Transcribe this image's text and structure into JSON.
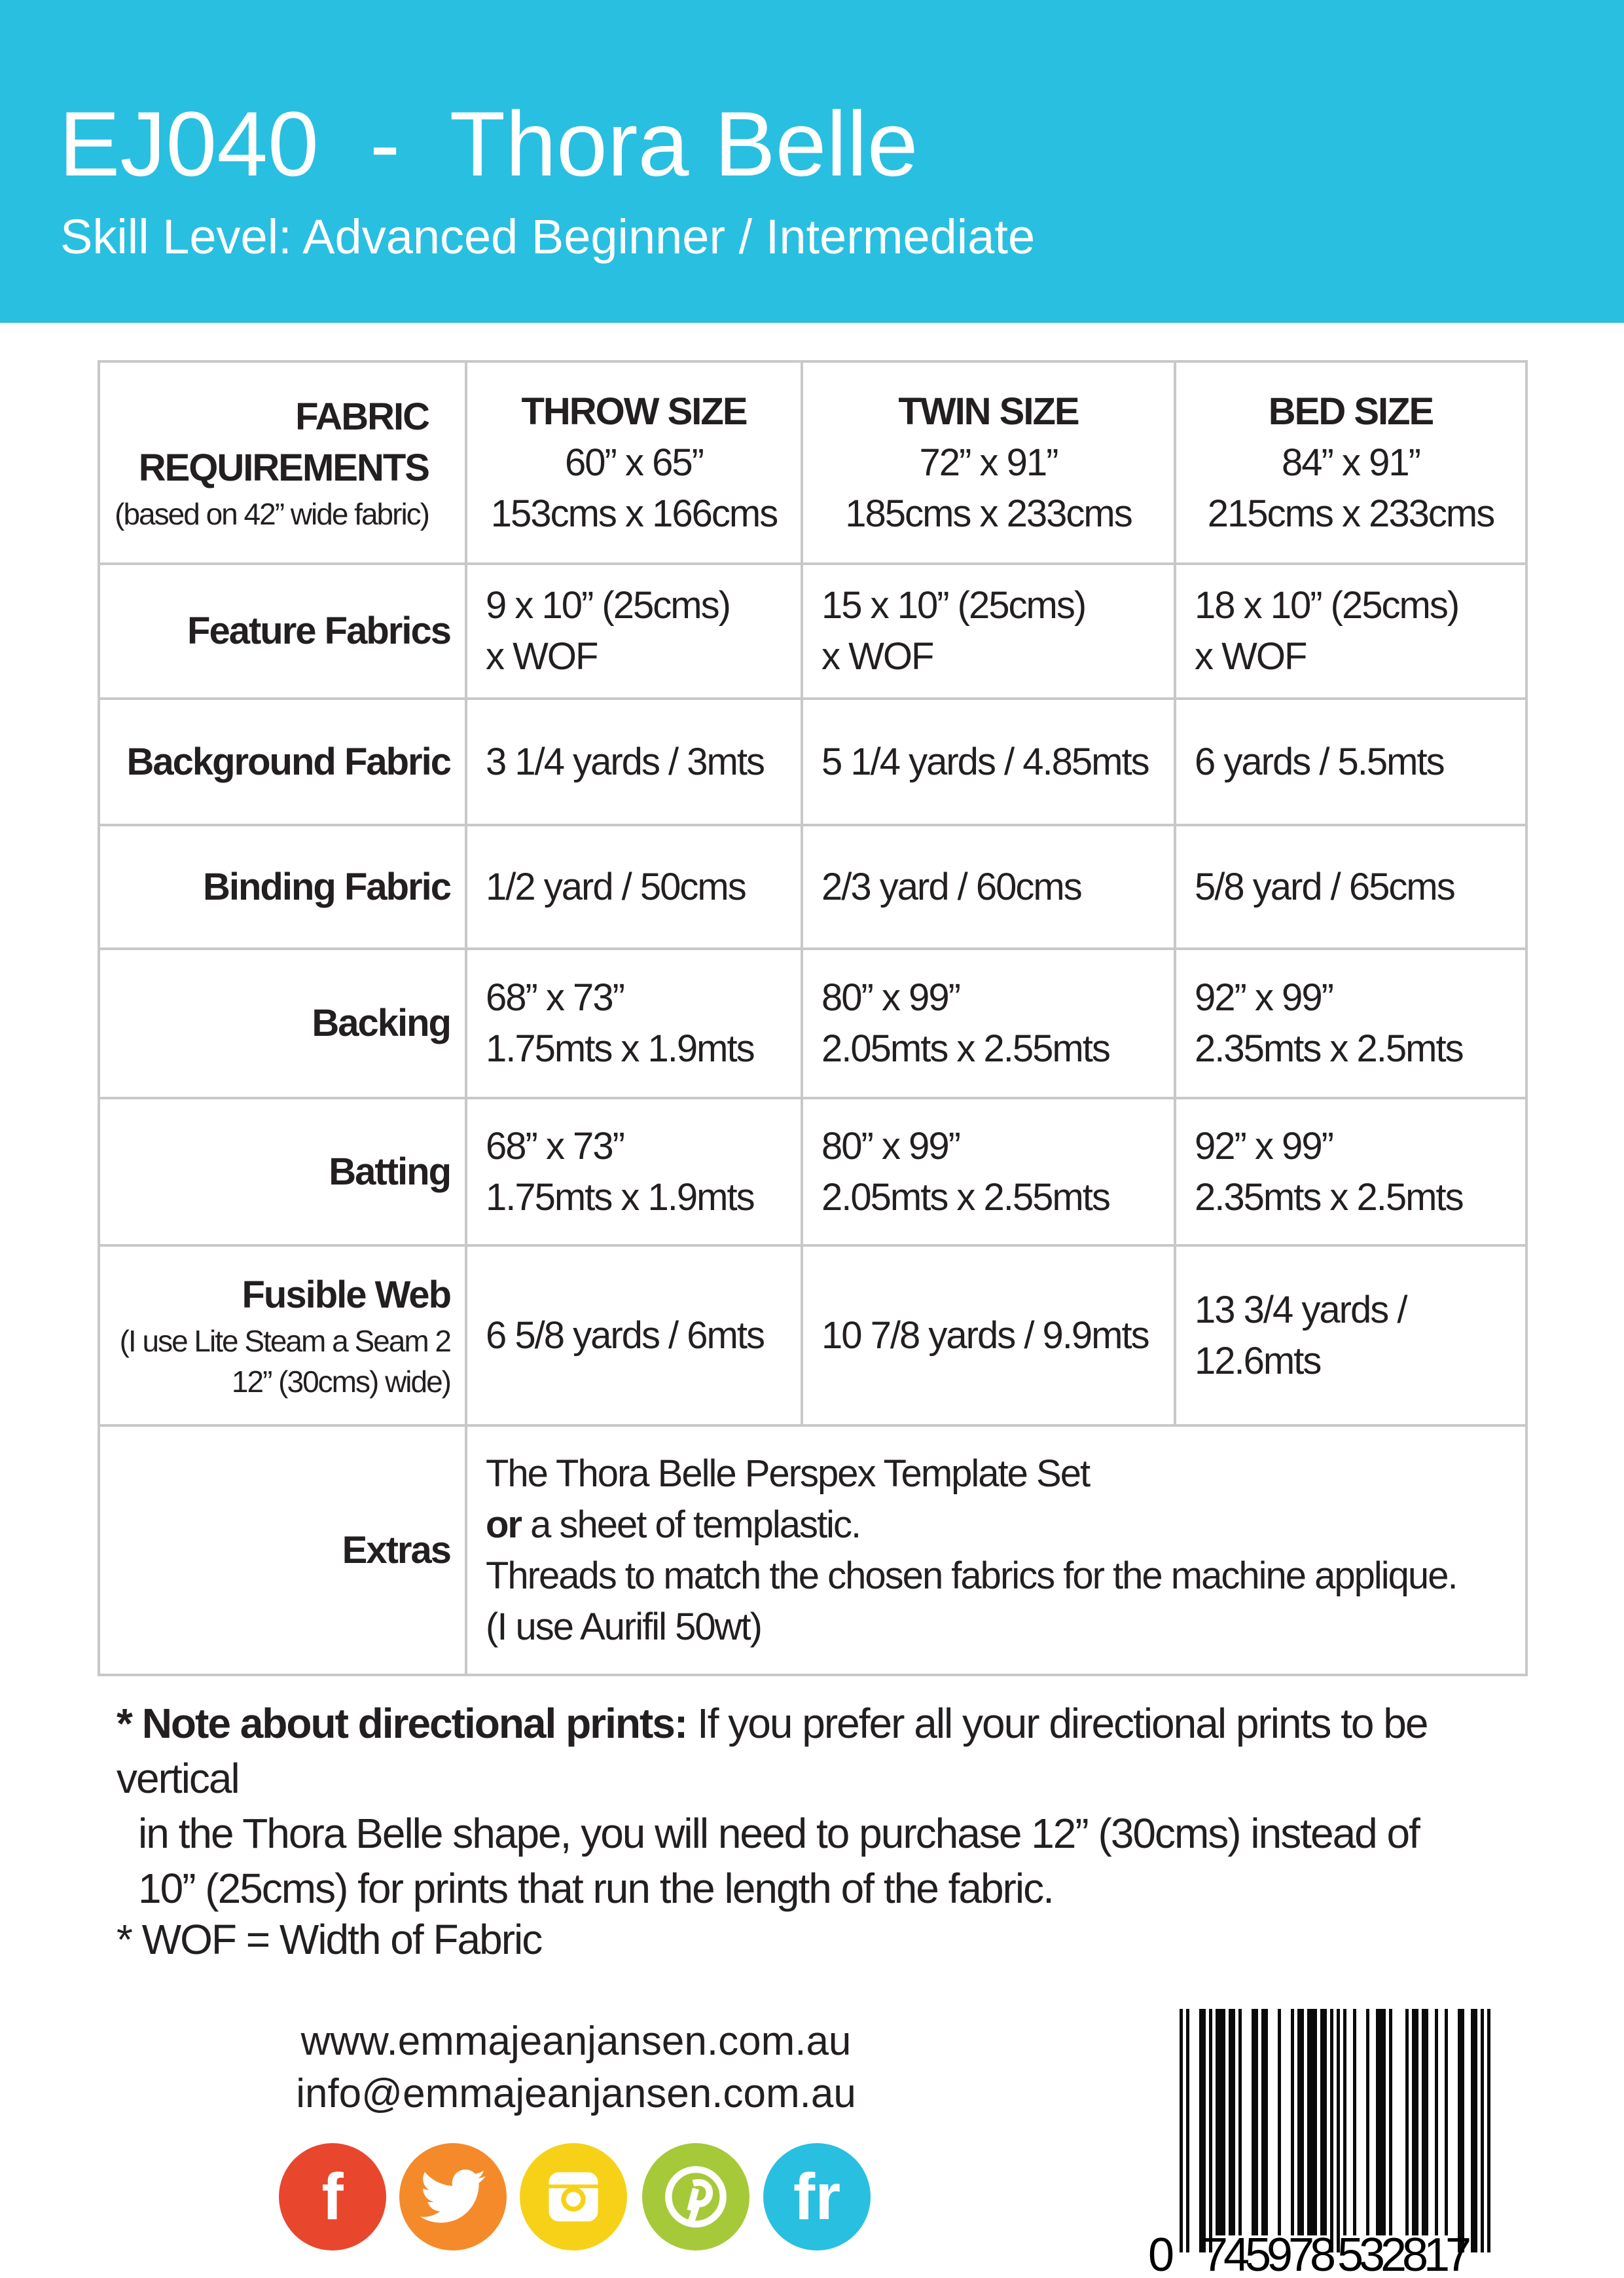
{
  "header": {
    "title": "EJ040  -  Thora Belle",
    "subtitle": "Skill Level: Advanced Beginner / Intermediate",
    "background_color": "#29bfe0"
  },
  "table": {
    "corner": {
      "line1": "FABRIC",
      "line2": "REQUIREMENTS",
      "note": "(based on 42” wide fabric)"
    },
    "columns": [
      {
        "name": "THROW SIZE",
        "inches": "60” x  65”",
        "cms": "153cms x 166cms"
      },
      {
        "name": "TWIN SIZE",
        "inches": "72” x  91”",
        "cms": "185cms x 233cms"
      },
      {
        "name": "BED SIZE",
        "inches": "84” x  91”",
        "cms": "215cms x 233cms"
      }
    ],
    "rows": [
      {
        "label": "Feature Fabrics",
        "cells": [
          [
            "9 x 10” (25cms)",
            "x WOF"
          ],
          [
            "15 x 10” (25cms)",
            "x WOF"
          ],
          [
            "18 x 10” (25cms)",
            "x WOF"
          ]
        ]
      },
      {
        "label": "Background Fabric",
        "cells": [
          [
            "3 1/4 yards / 3mts"
          ],
          [
            "5 1/4 yards / 4.85mts"
          ],
          [
            "6 yards / 5.5mts"
          ]
        ]
      },
      {
        "label": "Binding Fabric",
        "cells": [
          [
            "1/2 yard / 50cms"
          ],
          [
            "2/3 yard / 60cms"
          ],
          [
            "5/8 yard / 65cms"
          ]
        ]
      },
      {
        "label": "Backing",
        "cells": [
          [
            "68” x 73”",
            "1.75mts x 1.9mts"
          ],
          [
            "80” x 99”",
            "2.05mts x 2.55mts"
          ],
          [
            "92” x 99”",
            "2.35mts x 2.5mts"
          ]
        ]
      },
      {
        "label": "Batting",
        "cells": [
          [
            "68” x 73”",
            "1.75mts x 1.9mts"
          ],
          [
            "80” x 99”",
            "2.05mts x 2.55mts"
          ],
          [
            "92” x 99”",
            "2.35mts x 2.5mts"
          ]
        ]
      },
      {
        "label": "Fusible Web",
        "sublabel1": "(I use Lite Steam a Seam 2",
        "sublabel2": "12” (30cms) wide)",
        "cells": [
          [
            "6 5/8 yards / 6mts"
          ],
          [
            "10 7/8 yards / 9.9mts"
          ],
          [
            "13 3/4 yards /",
            "12.6mts"
          ]
        ]
      }
    ],
    "extras": {
      "label": "Extras",
      "line1": "The Thora Belle Perspex Template Set",
      "line2_bold": "or",
      "line2": " a sheet of templastic.",
      "line3": "Threads to match the chosen fabrics for the machine applique.",
      "line4": "(I use Aurifil 50wt)"
    }
  },
  "note": {
    "bold": "* Note about directional prints:",
    "line1": " If you prefer all your directional prints to be vertical",
    "line2": "in the Thora Belle shape, you will need to purchase 12” (30cms) instead of",
    "line3": "10” (25cms) for prints that run the length of the fabric."
  },
  "wof_note": "* WOF = Width of Fabric",
  "footer": {
    "website": "www.emmajeanjansen.com.au",
    "email": "info@emmajeanjansen.com.au",
    "social": [
      {
        "icon": "facebook-icon",
        "glyph": "f",
        "color": "#e8472d"
      },
      {
        "icon": "twitter-icon",
        "glyph": "",
        "color": "#f58a2a"
      },
      {
        "icon": "instagram-icon",
        "glyph": "",
        "color": "#f7d117"
      },
      {
        "icon": "pinterest-icon",
        "glyph": "",
        "color": "#a6c93a"
      },
      {
        "icon": "flickr-icon",
        "glyph": "fr",
        "color": "#29bfe0"
      }
    ]
  },
  "barcode": {
    "first": "0",
    "left": "745978",
    "right": "532817"
  }
}
